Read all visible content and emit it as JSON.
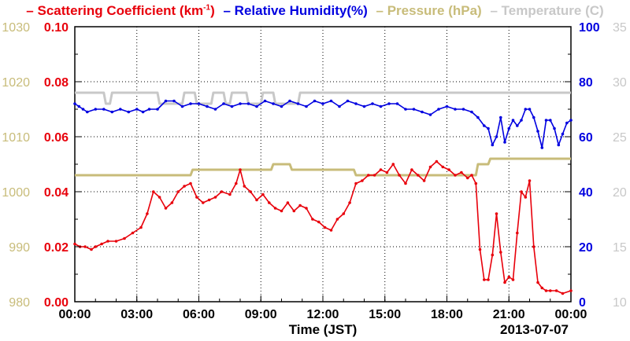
{
  "chart_data": {
    "type": "line",
    "xlabel": "Time (JST)",
    "date_label": "2013-07-07",
    "x_ticks": [
      "00:00",
      "03:00",
      "06:00",
      "09:00",
      "12:00",
      "15:00",
      "18:00",
      "21:00",
      "00:00"
    ],
    "x_range_hours": [
      0,
      24
    ],
    "grid": true,
    "legend_placement": "top",
    "axes": {
      "scattering": {
        "side": "left-inner",
        "ylim": [
          0,
          0.1
        ],
        "ticks": [
          "0.00",
          "0.02",
          "0.04",
          "0.06",
          "0.08",
          "0.10"
        ],
        "color": "#e8000b"
      },
      "pressure": {
        "side": "left-outer",
        "ylim": [
          980,
          1030
        ],
        "ticks": [
          "980",
          "990",
          "1000",
          "1010",
          "1020",
          "1030"
        ],
        "color": "#c8bc7a"
      },
      "humidity": {
        "side": "right-inner",
        "ylim": [
          0,
          100
        ],
        "ticks": [
          "0",
          "20",
          "40",
          "60",
          "80",
          "100"
        ],
        "color": "#0000e0"
      },
      "temperature": {
        "side": "right-outer",
        "ylim": [
          10,
          35
        ],
        "ticks": [
          "10",
          "15",
          "20",
          "25",
          "30",
          "35"
        ],
        "color": "#c8c8c8"
      }
    },
    "series": [
      {
        "name": "Scattering Coefficient",
        "axis": "scattering",
        "color": "#e8000b",
        "x": [
          0,
          0.25,
          0.5,
          0.8,
          1.0,
          1.3,
          1.6,
          2.0,
          2.4,
          2.8,
          3.2,
          3.5,
          3.8,
          4.1,
          4.4,
          4.7,
          5.0,
          5.3,
          5.6,
          5.9,
          6.2,
          6.5,
          6.8,
          7.1,
          7.5,
          7.8,
          8.0,
          8.2,
          8.5,
          8.8,
          9.1,
          9.4,
          9.7,
          10.0,
          10.3,
          10.6,
          10.9,
          11.2,
          11.5,
          11.8,
          12.1,
          12.4,
          12.7,
          13.0,
          13.3,
          13.6,
          13.9,
          14.2,
          14.5,
          14.8,
          15.1,
          15.4,
          15.7,
          16.0,
          16.3,
          16.6,
          16.9,
          17.2,
          17.5,
          17.8,
          18.1,
          18.4,
          18.7,
          19.0,
          19.2,
          19.4,
          19.6,
          19.8,
          20.0,
          20.2,
          20.4,
          20.6,
          20.8,
          21.0,
          21.2,
          21.4,
          21.6,
          21.8,
          22.0,
          22.2,
          22.4,
          22.6,
          22.8,
          23.0,
          23.3,
          23.6,
          24.0
        ],
        "y": [
          0.021,
          0.02,
          0.02,
          0.019,
          0.02,
          0.021,
          0.022,
          0.022,
          0.023,
          0.025,
          0.027,
          0.032,
          0.04,
          0.038,
          0.034,
          0.036,
          0.04,
          0.042,
          0.043,
          0.038,
          0.036,
          0.037,
          0.038,
          0.04,
          0.039,
          0.043,
          0.048,
          0.042,
          0.04,
          0.037,
          0.039,
          0.036,
          0.034,
          0.033,
          0.036,
          0.033,
          0.035,
          0.034,
          0.03,
          0.029,
          0.027,
          0.026,
          0.03,
          0.032,
          0.036,
          0.043,
          0.044,
          0.046,
          0.046,
          0.048,
          0.047,
          0.05,
          0.046,
          0.043,
          0.048,
          0.046,
          0.044,
          0.049,
          0.051,
          0.049,
          0.048,
          0.046,
          0.047,
          0.045,
          0.046,
          0.043,
          0.019,
          0.008,
          0.008,
          0.017,
          0.032,
          0.018,
          0.007,
          0.009,
          0.008,
          0.025,
          0.04,
          0.038,
          0.044,
          0.02,
          0.007,
          0.005,
          0.004,
          0.004,
          0.004,
          0.003,
          0.004
        ]
      },
      {
        "name": "Relative Humidity(%)",
        "axis": "humidity",
        "color": "#0000e0",
        "x": [
          0,
          0.2,
          0.4,
          0.6,
          1.0,
          1.4,
          1.8,
          2.2,
          2.6,
          3.0,
          3.3,
          3.6,
          4.0,
          4.4,
          4.8,
          5.2,
          5.6,
          6.0,
          6.4,
          6.8,
          7.2,
          7.6,
          8.0,
          8.4,
          8.8,
          9.2,
          9.6,
          10.0,
          10.4,
          10.8,
          11.2,
          11.6,
          12.0,
          12.4,
          12.8,
          13.2,
          13.6,
          14.0,
          14.4,
          14.8,
          15.2,
          15.6,
          16.0,
          16.4,
          16.8,
          17.2,
          17.6,
          18.0,
          18.4,
          18.8,
          19.2,
          19.5,
          19.8,
          20.0,
          20.2,
          20.4,
          20.6,
          20.8,
          21.0,
          21.2,
          21.4,
          21.6,
          21.8,
          22.0,
          22.2,
          22.4,
          22.6,
          22.8,
          23.0,
          23.2,
          23.4,
          23.6,
          23.8,
          24.0
        ],
        "y": [
          72,
          71,
          70,
          69,
          70,
          70,
          69,
          70,
          69,
          70,
          69,
          70,
          70,
          73,
          73,
          71,
          72,
          72,
          71,
          70,
          72,
          71,
          72,
          72,
          71,
          73,
          72,
          71,
          73,
          72,
          71,
          73,
          72,
          73,
          71,
          73,
          72,
          71,
          72,
          71,
          72,
          72,
          70,
          70,
          69,
          68,
          70,
          71,
          70,
          70,
          69,
          67,
          64,
          63,
          57,
          60,
          67,
          58,
          63,
          66,
          64,
          66,
          70,
          70,
          67,
          62,
          56,
          66,
          66,
          63,
          57,
          61,
          65,
          66
        ]
      },
      {
        "name": "Pressure (hPa)",
        "axis": "pressure",
        "color": "#c8bc7a",
        "x": [
          0,
          5.6,
          5.7,
          9.5,
          9.6,
          10.4,
          10.5,
          13.5,
          13.6,
          19.4,
          19.5,
          20.0,
          20.1,
          24.0
        ],
        "y": [
          1003,
          1003,
          1004,
          1004,
          1005,
          1005,
          1004,
          1004,
          1003,
          1003,
          1005,
          1005,
          1006,
          1006
        ]
      },
      {
        "name": "Temperature (C)",
        "axis": "temperature",
        "color": "#c8c8c8",
        "x": [
          0,
          1.4,
          1.5,
          1.7,
          1.8,
          4.0,
          4.1,
          5.2,
          5.3,
          5.8,
          5.9,
          6.6,
          6.7,
          7.2,
          7.3,
          7.5,
          7.6,
          8.3,
          8.4,
          9.0,
          9.1,
          9.6,
          9.7,
          10.8,
          10.9,
          24.0
        ],
        "y": [
          29,
          29,
          28,
          28,
          29,
          29,
          28,
          28,
          29,
          29,
          28,
          28,
          29,
          29,
          28,
          28,
          29,
          29,
          28,
          28,
          29,
          29,
          28,
          28,
          29,
          29
        ]
      }
    ]
  },
  "legend": {
    "scattering_pre": "Scattering Coefficient (km",
    "scattering_sup": "-1",
    "scattering_post": ")",
    "humidity": "Relative Humidity(%)",
    "pressure": "Pressure (hPa)",
    "temperature": "Temperature (",
    "temperature_unit": "C)"
  }
}
